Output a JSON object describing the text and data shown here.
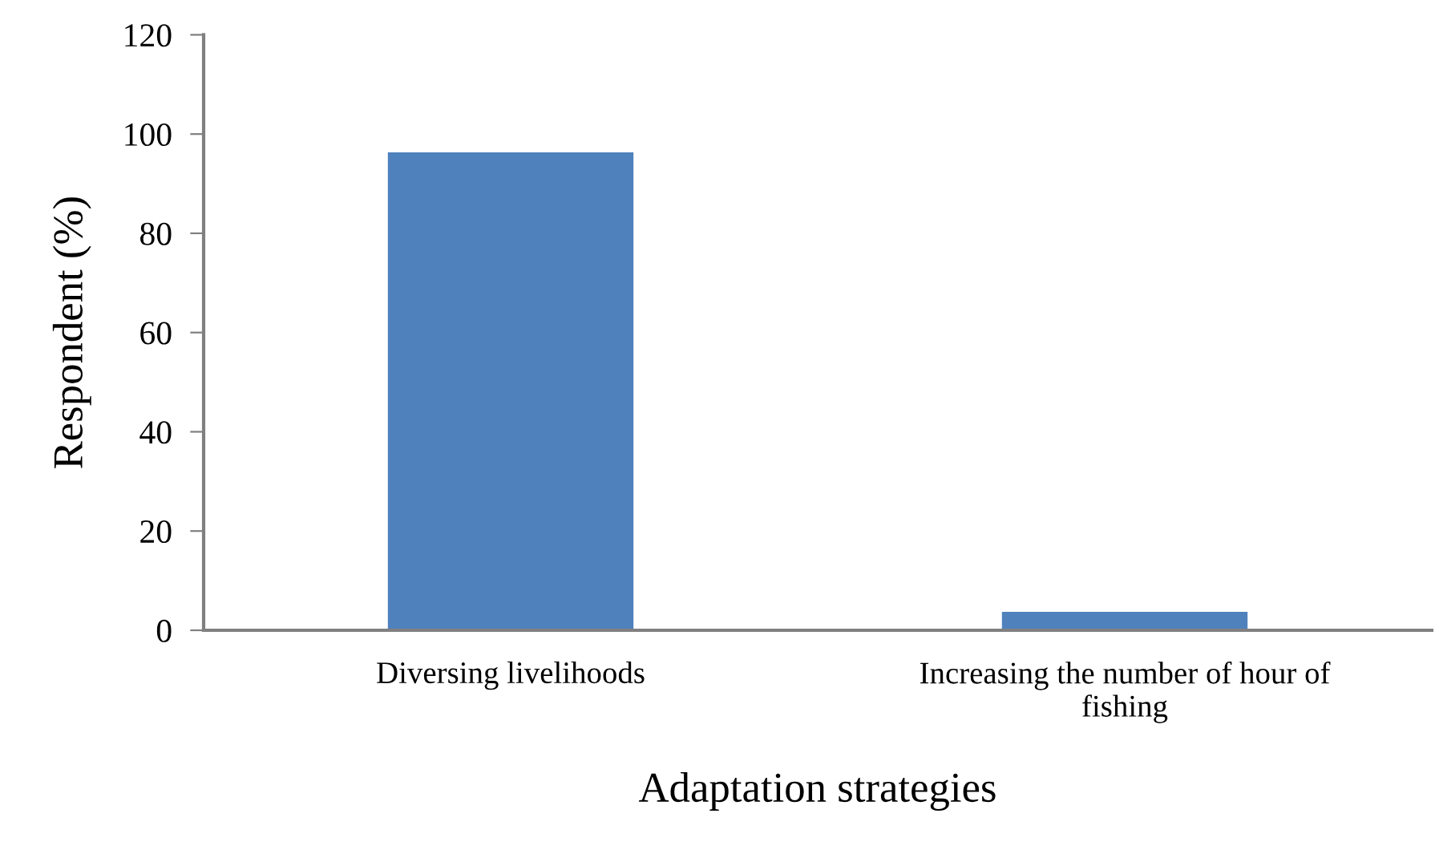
{
  "chart_data": {
    "type": "bar",
    "xlabel": "Adaptation strategies",
    "ylabel": "Respondent (%)",
    "categories": [
      "Diversing livelihoods",
      "Increasing the number of hour of\nfishing"
    ],
    "values": [
      96.3,
      3.7
    ],
    "color": "#4f81bd",
    "ylim": [
      0,
      120
    ],
    "yticks": [
      0,
      20,
      40,
      60,
      80,
      100,
      120
    ],
    "grid": false,
    "legend": false
  }
}
